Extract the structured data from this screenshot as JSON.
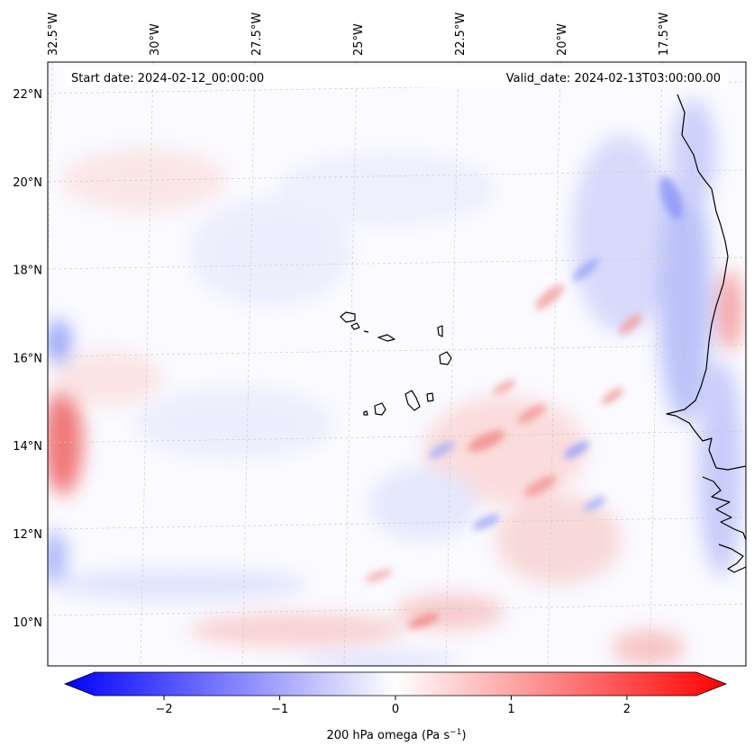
{
  "map": {
    "start_date": "Start date: 2024-02-12_00:00:00",
    "valid_date": "Valid_date: 2024-02-13T03:00:00.00",
    "lon_labels": [
      {
        "lon": -32.5,
        "text": "32.5°W"
      },
      {
        "lon": -30,
        "text": "30°W"
      },
      {
        "lon": -27.5,
        "text": "27.5°W"
      },
      {
        "lon": -25,
        "text": "25°W"
      },
      {
        "lon": -22.5,
        "text": "22.5°W"
      },
      {
        "lon": -20,
        "text": "20°W"
      },
      {
        "lon": -17.5,
        "text": "17.5°W"
      }
    ],
    "lat_labels": [
      {
        "lat": 22,
        "text": "22°N"
      },
      {
        "lat": 20,
        "text": "20°N"
      },
      {
        "lat": 18,
        "text": "18°N"
      },
      {
        "lat": 16,
        "text": "16°N"
      },
      {
        "lat": 14,
        "text": "14°N"
      },
      {
        "lat": 12,
        "text": "12°N"
      },
      {
        "lat": 10,
        "text": "10°N"
      }
    ]
  },
  "colorbar": {
    "label_main": "200 hPa omega (Pa s",
    "label_exp": "−1",
    "label_close": ")",
    "range": [
      -2.6,
      2.6
    ],
    "ticks": [
      {
        "value": -2,
        "text": "−2"
      },
      {
        "value": -1,
        "text": "−1"
      },
      {
        "value": 0,
        "text": "0"
      },
      {
        "value": 1,
        "text": "1"
      },
      {
        "value": 2,
        "text": "2"
      }
    ],
    "colors": {
      "negative": "#0000ff",
      "zero": "#ffffff",
      "positive": "#ff0000"
    }
  }
}
